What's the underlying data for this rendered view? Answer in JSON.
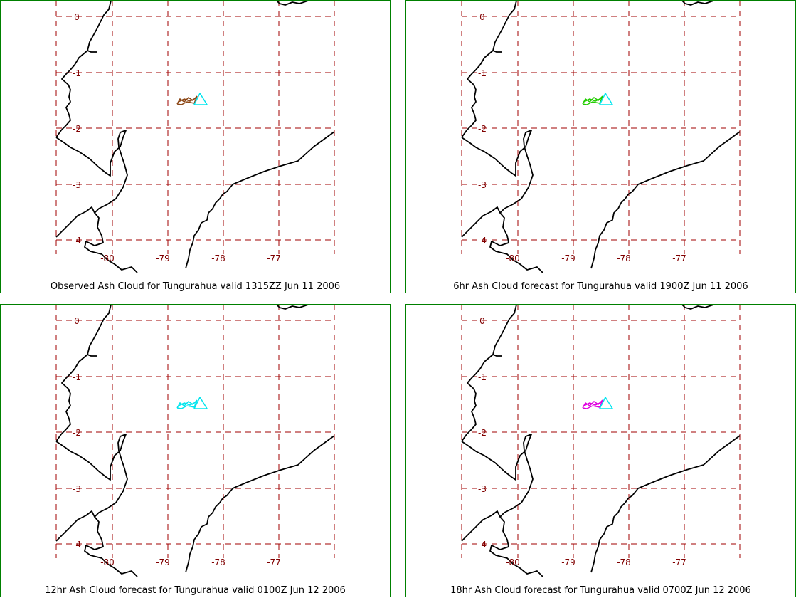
{
  "map": {
    "latitude_labels": [
      "0",
      "-1",
      "-2",
      "-3",
      "-4"
    ],
    "longitude_labels": [
      "-80",
      "-79",
      "-78",
      "-77"
    ],
    "grid_color": "#a00000",
    "coast_color": "#000000",
    "volcano": "Tungurahua"
  },
  "panels": [
    {
      "caption": "Observed Ash Cloud for Tungurahua valid 1315ZZ Jun 11 2006",
      "cloud_color": "#8b4513"
    },
    {
      "caption": "6hr Ash Cloud forecast for Tungurahua valid 1900Z Jun 11 2006",
      "cloud_color": "#22cc00"
    },
    {
      "caption": "12hr Ash Cloud forecast for Tungurahua valid 0100Z Jun 12 2006",
      "cloud_color": "#00e5ee"
    },
    {
      "caption": "18hr Ash Cloud forecast for Tungurahua valid 0700Z Jun 12 2006",
      "cloud_color": "#e000e0"
    }
  ],
  "volcano_marker_color": "#00e5ee"
}
